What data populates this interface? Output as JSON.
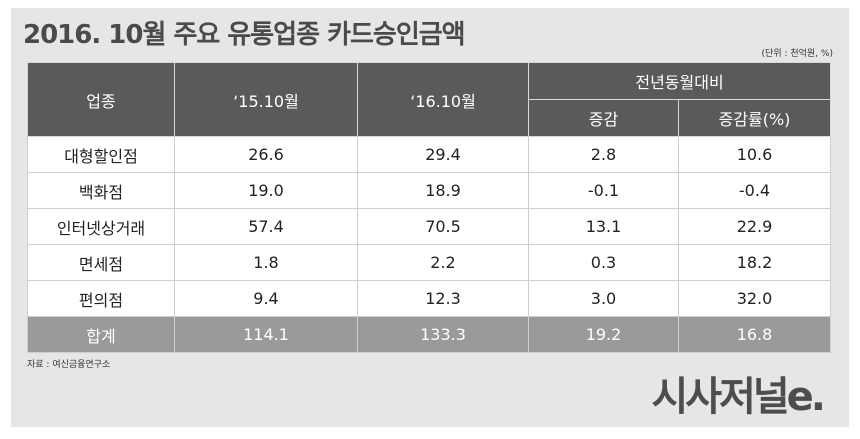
{
  "title": "2016. 10월 주요 유통업종 카드승인금액",
  "unit": "(단위 : 천억원, %)",
  "table": {
    "headers": {
      "industry": "업종",
      "prev": "‘15.10월",
      "curr": "‘16.10월",
      "yoy": "전년동월대비",
      "change": "증감",
      "rate": "증감률(%)"
    },
    "rows": [
      [
        "대형할인점",
        "26.6",
        "29.4",
        "2.8",
        "10.6"
      ],
      [
        "백화점",
        "19.0",
        "18.9",
        "-0.1",
        "-0.4"
      ],
      [
        "인터넷상거래",
        "57.4",
        "70.5",
        "13.1",
        "22.9"
      ],
      [
        "면세점",
        "1.8",
        "2.2",
        "0.3",
        "18.2"
      ],
      [
        "편의점",
        "9.4",
        "12.3",
        "3.0",
        "32.0"
      ]
    ],
    "total": [
      "합계",
      "114.1",
      "133.3",
      "19.2",
      "16.8"
    ]
  },
  "source": "자료 : 여신금융연구소",
  "logo": "시사저널e."
}
